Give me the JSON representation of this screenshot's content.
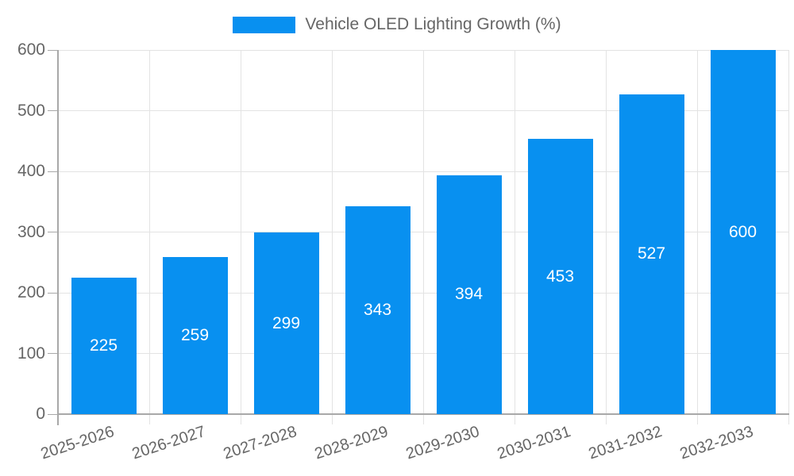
{
  "chart_data": {
    "type": "bar",
    "title": "Vehicle OLED Lighting Growth (%)",
    "legend_entries": [
      "Vehicle OLED Lighting Growth (%)"
    ],
    "legend_position": "top",
    "categories": [
      "2025-2026",
      "2026-2027",
      "2027-2028",
      "2028-2029",
      "2029-2030",
      "2030-2031",
      "2031-2032",
      "2032-2033"
    ],
    "series": [
      {
        "name": "Vehicle OLED Lighting Growth (%)",
        "values": [
          225,
          259,
          299,
          343,
          394,
          453,
          527,
          600
        ]
      }
    ],
    "value_labels_shown": true,
    "xlabel": "",
    "ylabel": "",
    "ylim": [
      0,
      600
    ],
    "y_ticks": [
      0,
      100,
      200,
      300,
      400,
      500,
      600
    ],
    "grid": true,
    "colors": {
      "bar": "#0890f0",
      "value_label": "#ffffff",
      "tick_label": "#666666",
      "grid": "#e3e3e3",
      "axis": "#a8a8a8",
      "background": "#ffffff"
    }
  }
}
